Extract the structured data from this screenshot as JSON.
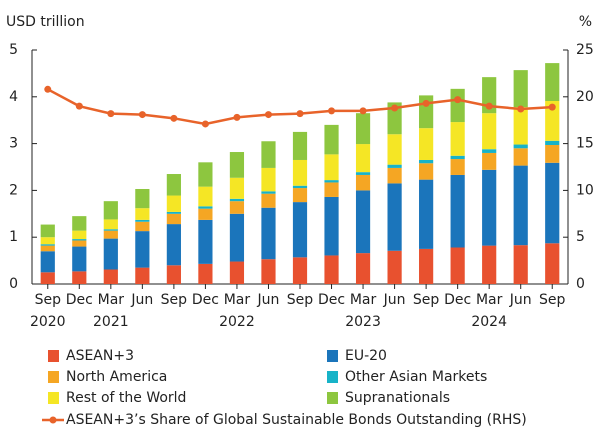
{
  "chart_data": {
    "type": "bar",
    "y_label": "USD trillion",
    "y2_label": "%",
    "categories": [
      "Sep",
      "Dec",
      "Mar",
      "Jun",
      "Sep",
      "Dec",
      "Mar",
      "Jun",
      "Sep",
      "Dec",
      "Mar",
      "Jun",
      "Sep",
      "Dec",
      "Mar",
      "Jun",
      "Sep"
    ],
    "years": [
      "2020",
      null,
      "2021",
      null,
      null,
      null,
      "2022",
      null,
      null,
      null,
      "2023",
      null,
      null,
      null,
      "2024",
      null,
      null
    ],
    "stacked": true,
    "ylim": [
      0,
      5
    ],
    "yticks": [
      0,
      1,
      2,
      3,
      4,
      5
    ],
    "y2lim": [
      0,
      25
    ],
    "y2ticks": [
      0,
      5,
      10,
      15,
      20,
      25
    ],
    "series": [
      {
        "name": "ASEAN+3",
        "color": "#e8512f",
        "values": [
          0.25,
          0.27,
          0.31,
          0.35,
          0.4,
          0.43,
          0.48,
          0.53,
          0.57,
          0.61,
          0.66,
          0.71,
          0.75,
          0.78,
          0.82,
          0.83,
          0.87
        ]
      },
      {
        "name": "EU-20",
        "color": "#1b75bb",
        "values": [
          0.45,
          0.53,
          0.66,
          0.78,
          0.88,
          0.94,
          1.02,
          1.1,
          1.18,
          1.25,
          1.34,
          1.44,
          1.48,
          1.55,
          1.62,
          1.7,
          1.72
        ]
      },
      {
        "name": "North America",
        "color": "#f5a623",
        "values": [
          0.12,
          0.13,
          0.17,
          0.2,
          0.22,
          0.24,
          0.27,
          0.3,
          0.3,
          0.31,
          0.33,
          0.33,
          0.35,
          0.34,
          0.36,
          0.37,
          0.38
        ]
      },
      {
        "name": "Other Asian Markets",
        "color": "#17b3c8",
        "values": [
          0.03,
          0.03,
          0.03,
          0.04,
          0.04,
          0.05,
          0.05,
          0.05,
          0.05,
          0.05,
          0.06,
          0.07,
          0.07,
          0.07,
          0.08,
          0.08,
          0.09
        ]
      },
      {
        "name": "Rest of the World",
        "color": "#f5e625",
        "values": [
          0.15,
          0.18,
          0.21,
          0.25,
          0.35,
          0.42,
          0.45,
          0.5,
          0.55,
          0.55,
          0.6,
          0.65,
          0.68,
          0.72,
          0.77,
          0.8,
          0.85
        ]
      },
      {
        "name": "Supranationals",
        "color": "#8dc63f",
        "values": [
          0.27,
          0.31,
          0.39,
          0.41,
          0.46,
          0.52,
          0.55,
          0.57,
          0.6,
          0.63,
          0.66,
          0.68,
          0.7,
          0.71,
          0.77,
          0.79,
          0.81
        ]
      },
      {
        "name": "ASEAN+3’s Share of Global Sustainable Bonds Outstanding (RHS)",
        "color": "#e8632a",
        "type": "line",
        "axis": "y2",
        "values": [
          20.8,
          19.0,
          18.2,
          18.1,
          17.7,
          17.1,
          17.8,
          18.1,
          18.2,
          18.5,
          18.5,
          18.8,
          19.3,
          19.7,
          19.0,
          18.7,
          18.9
        ]
      }
    ]
  }
}
